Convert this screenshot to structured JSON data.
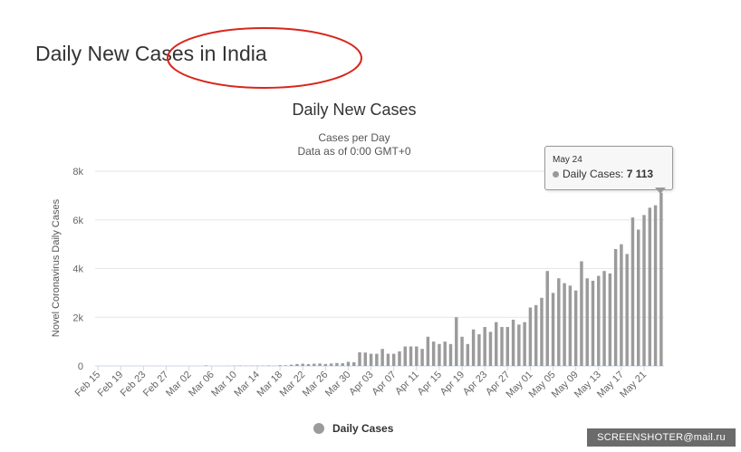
{
  "page": {
    "heading": "Daily New Cases in India"
  },
  "annotation_color": "#d9261c",
  "watermark": {
    "text": "SCREENSHOTER@mail.ru"
  },
  "tooltip": {
    "date": "May 24",
    "series": "Daily Cases",
    "value": "7 113"
  },
  "chart_data": {
    "type": "bar",
    "title": "Daily New Cases",
    "subtitle_lines": [
      "Cases per Day",
      "Data as of 0:00 GMT+0"
    ],
    "ylabel": "Novel Coronavirus Daily Cases",
    "xlabel": "",
    "ylim": [
      0,
      8000
    ],
    "yticks": [
      0,
      2000,
      4000,
      6000,
      8000
    ],
    "ytick_labels": [
      "0",
      "2k",
      "4k",
      "6k",
      "8k"
    ],
    "grid": true,
    "bar_color": "#9b9b9b",
    "legend_position": "bottom-center",
    "x_tick_labels": [
      "Feb 15",
      "Feb 19",
      "Feb 23",
      "Feb 27",
      "Mar 02",
      "Mar 06",
      "Mar 10",
      "Mar 14",
      "Mar 18",
      "Mar 22",
      "Mar 26",
      "Mar 30",
      "Apr 03",
      "Apr 07",
      "Apr 11",
      "Apr 15",
      "Apr 19",
      "Apr 23",
      "Apr 27",
      "May 01",
      "May 05",
      "May 09",
      "May 13",
      "May 17",
      "May 21"
    ],
    "categories": [
      "Feb 15",
      "Feb 16",
      "Feb 17",
      "Feb 18",
      "Feb 19",
      "Feb 20",
      "Feb 21",
      "Feb 22",
      "Feb 23",
      "Feb 24",
      "Feb 25",
      "Feb 26",
      "Feb 27",
      "Feb 28",
      "Feb 29",
      "Mar 01",
      "Mar 02",
      "Mar 03",
      "Mar 04",
      "Mar 05",
      "Mar 06",
      "Mar 07",
      "Mar 08",
      "Mar 09",
      "Mar 10",
      "Mar 11",
      "Mar 12",
      "Mar 13",
      "Mar 14",
      "Mar 15",
      "Mar 16",
      "Mar 17",
      "Mar 18",
      "Mar 19",
      "Mar 20",
      "Mar 21",
      "Mar 22",
      "Mar 23",
      "Mar 24",
      "Mar 25",
      "Mar 26",
      "Mar 27",
      "Mar 28",
      "Mar 29",
      "Mar 30",
      "Mar 31",
      "Apr 01",
      "Apr 02",
      "Apr 03",
      "Apr 04",
      "Apr 05",
      "Apr 06",
      "Apr 07",
      "Apr 08",
      "Apr 09",
      "Apr 10",
      "Apr 11",
      "Apr 12",
      "Apr 13",
      "Apr 14",
      "Apr 15",
      "Apr 16",
      "Apr 17",
      "Apr 18",
      "Apr 19",
      "Apr 20",
      "Apr 21",
      "Apr 22",
      "Apr 23",
      "Apr 24",
      "Apr 25",
      "Apr 26",
      "Apr 27",
      "Apr 28",
      "Apr 29",
      "Apr 30",
      "May 01",
      "May 02",
      "May 03",
      "May 04",
      "May 05",
      "May 06",
      "May 07",
      "May 08",
      "May 09",
      "May 10",
      "May 11",
      "May 12",
      "May 13",
      "May 14",
      "May 15",
      "May 16",
      "May 17",
      "May 18",
      "May 19",
      "May 20",
      "May 21",
      "May 22",
      "May 23",
      "May 24"
    ],
    "series": [
      {
        "name": "Daily Cases",
        "values": [
          0,
          0,
          0,
          0,
          0,
          0,
          0,
          0,
          0,
          0,
          0,
          0,
          0,
          0,
          0,
          0,
          1,
          0,
          1,
          22,
          2,
          1,
          3,
          5,
          9,
          15,
          8,
          10,
          10,
          12,
          20,
          11,
          30,
          25,
          50,
          80,
          90,
          75,
          90,
          100,
          80,
          100,
          120,
          110,
          170,
          150,
          560,
          550,
          500,
          500,
          700,
          500,
          500,
          600,
          800,
          800,
          800,
          700,
          1200,
          1000,
          900,
          1000,
          900,
          2000,
          1200,
          900,
          1500,
          1300,
          1600,
          1400,
          1800,
          1600,
          1600,
          1900,
          1700,
          1800,
          2400,
          2500,
          2800,
          3900,
          3000,
          3600,
          3400,
          3300,
          3100,
          4300,
          3600,
          3500,
          3700,
          3900,
          3800,
          4800,
          5000,
          4600,
          6100,
          5600,
          6200,
          6500,
          6600,
          7113
        ]
      }
    ]
  }
}
